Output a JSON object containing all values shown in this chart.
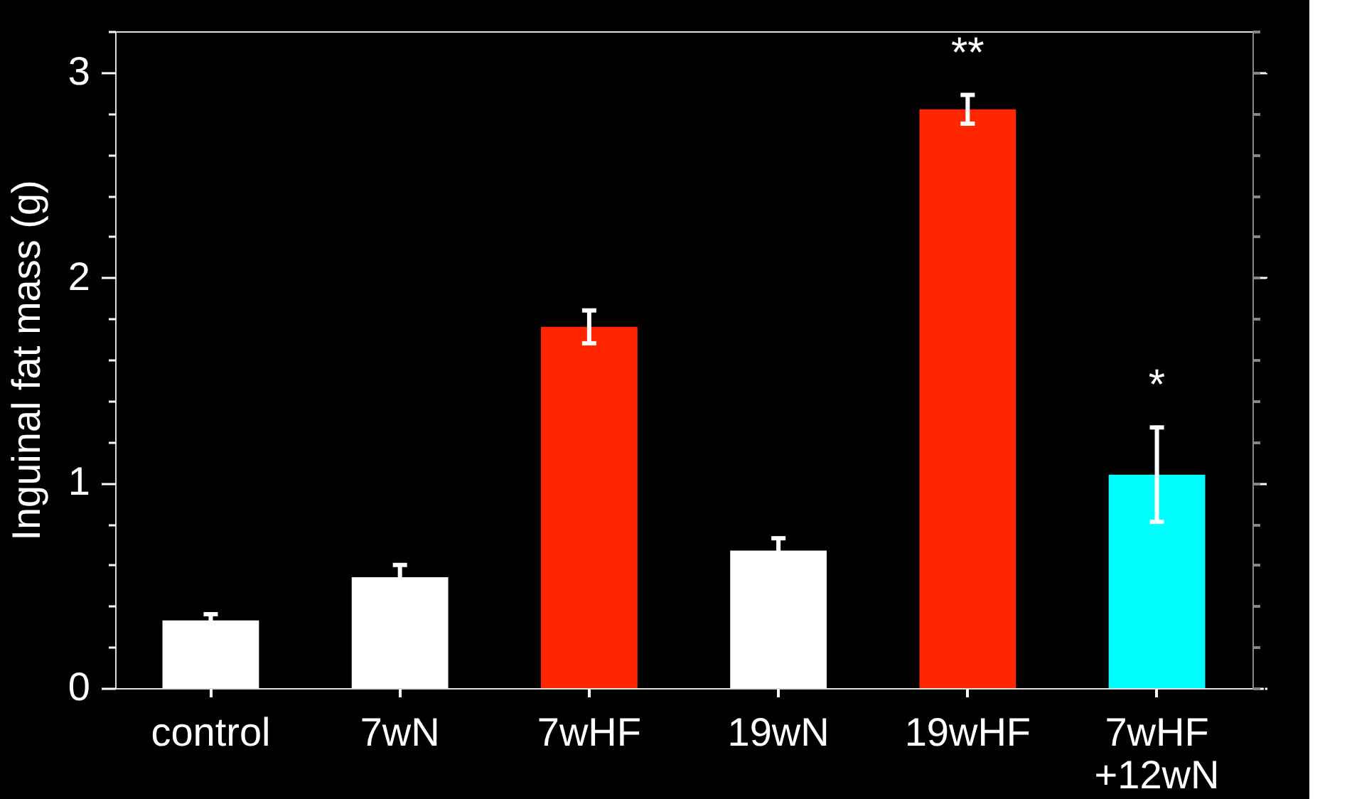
{
  "chart_data": {
    "type": "bar",
    "ylabel": "Inguinal fat mass (g)",
    "categories": [
      "control",
      "7wN",
      "7wHF",
      "19wN",
      "19wHF",
      "7wHF\n+12wN"
    ],
    "values": [
      0.33,
      0.54,
      1.76,
      0.67,
      2.82,
      1.04
    ],
    "colors": [
      "#ffffff",
      "#ffffff",
      "#ff2600",
      "#ffffff",
      "#ff2600",
      "#00ffff"
    ],
    "errors": [
      0.03,
      0.06,
      0.08,
      0.06,
      0.07,
      0.23
    ],
    "ylim": [
      0,
      3.2
    ],
    "yticks": [
      0,
      {
        "value": 0.2,
        "label": null
      },
      {
        "value": 0.4,
        "label": null
      },
      {
        "value": 0.6,
        "label": null
      },
      {
        "value": 0.8,
        "label": null
      },
      1,
      {
        "value": 1.2,
        "label": null
      },
      {
        "value": 1.4,
        "label": null
      },
      {
        "value": 1.6,
        "label": null
      },
      {
        "value": 1.8,
        "label": null
      },
      2,
      {
        "value": 2.2,
        "label": null
      },
      {
        "value": 2.4,
        "label": null
      },
      {
        "value": 2.6,
        "label": null
      },
      {
        "value": 2.8,
        "label": null
      },
      3,
      {
        "value": 3.2,
        "label": null
      }
    ],
    "grid": false,
    "legend": false,
    "annotations": [
      "**",
      "*"
    ]
  }
}
